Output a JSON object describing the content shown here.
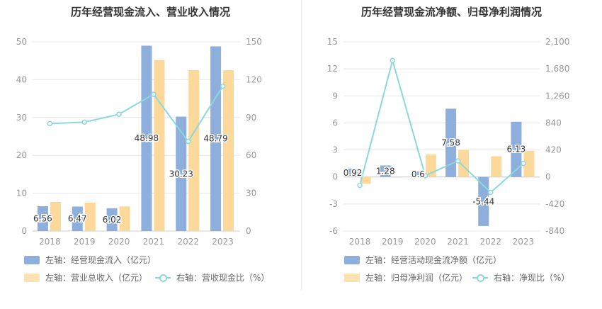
{
  "colors": {
    "bar1": "#8eaedc",
    "bar2": "#fdd89b",
    "line": "#8ad8dc",
    "grid": "#e8e8e8",
    "axis": "#999999"
  },
  "chart_data": [
    {
      "type": "bar",
      "title": "历年经营现金流入、营业收入情况",
      "categories": [
        "2018",
        "2019",
        "2020",
        "2021",
        "2022",
        "2023"
      ],
      "left_axis": {
        "ticks": [
          "0",
          "10",
          "20",
          "30",
          "40",
          "50"
        ],
        "ylim": [
          0,
          50
        ]
      },
      "right_axis": {
        "ticks": [
          "0",
          "30",
          "60",
          "90",
          "120",
          "150"
        ],
        "ylim": [
          0,
          150
        ]
      },
      "series": [
        {
          "name": "左轴：经营现金流入（亿元）",
          "type": "bar",
          "axis": "left",
          "values": [
            6.56,
            6.47,
            6.02,
            48.98,
            30.23,
            48.79
          ],
          "labels": [
            "6.56",
            "6.47",
            "6.02",
            "48.98",
            "30.23",
            "48.79"
          ]
        },
        {
          "name": "左轴：营业总收入（亿元）",
          "type": "bar",
          "axis": "left",
          "values": [
            7.7,
            7.5,
            6.5,
            45.2,
            42.5,
            42.5
          ]
        },
        {
          "name": "右轴：营收现金比（%）",
          "type": "line",
          "axis": "right",
          "values": [
            85.2,
            86.3,
            92.6,
            108.4,
            71.1,
            114.8
          ]
        }
      ]
    },
    {
      "type": "bar",
      "title": "历年经营现金流净额、归母净利润情况",
      "categories": [
        "2018",
        "2019",
        "2020",
        "2021",
        "2022",
        "2023"
      ],
      "left_axis": {
        "ticks": [
          "-6",
          "-3",
          "0",
          "3",
          "6",
          "9",
          "12",
          "15"
        ],
        "ylim": [
          -6,
          15
        ]
      },
      "right_axis": {
        "ticks": [
          "-840",
          "-420",
          "0",
          "420",
          "840",
          "1,260",
          "1,680",
          "2,100"
        ],
        "ylim": [
          -840,
          2100
        ]
      },
      "series": [
        {
          "name": "左轴：经营活动现金流净额（亿元）",
          "type": "bar",
          "axis": "left",
          "values": [
            0.92,
            1.28,
            0.6,
            7.58,
            -5.44,
            6.13
          ],
          "labels": [
            "0.92",
            "1.28",
            "0.6",
            "7.58",
            "-5.44",
            "6.13"
          ]
        },
        {
          "name": "左轴：归母净利润（亿元）",
          "type": "bar",
          "axis": "left",
          "values": [
            -0.75,
            0.05,
            2.5,
            3.0,
            2.3,
            2.9
          ]
        },
        {
          "name": "右轴：净现比（%）",
          "type": "line",
          "axis": "right",
          "values": [
            -130,
            1810,
            20,
            250,
            -240,
            210
          ]
        }
      ]
    }
  ]
}
